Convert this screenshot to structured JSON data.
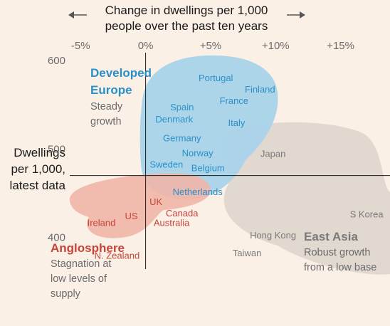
{
  "chart_data": {
    "type": "scatter",
    "x_title": [
      "Change in dwellings per 1,000",
      "people over the past ten years"
    ],
    "y_title": [
      "Dwellings",
      "per 1,000,",
      "latest data"
    ],
    "x_ticks": [
      {
        "value": -5,
        "label": "-5%"
      },
      {
        "value": 0,
        "label": "0%"
      },
      {
        "value": 5,
        "label": "+5%"
      },
      {
        "value": 10,
        "label": "+10%"
      },
      {
        "value": 15,
        "label": "+15%"
      }
    ],
    "y_ticks": [
      {
        "value": 600,
        "label": "600"
      },
      {
        "value": 500,
        "label": "500"
      },
      {
        "value": 400,
        "label": "400"
      }
    ],
    "xlim": [
      -11.2,
      18.8
    ],
    "ylim": [
      300,
      620
    ],
    "reference_lines": {
      "x": 0,
      "y": 470
    },
    "groups": [
      {
        "name": "Developed Europe",
        "title": [
          "Developed",
          "Europe"
        ],
        "subtitle": [
          "Steady",
          "growth"
        ],
        "color": "#2a8fc9",
        "fill": "#a9d3ea",
        "points": [
          {
            "label": "Portugal",
            "x": 5.4,
            "y": 580
          },
          {
            "label": "Finland",
            "x": 8.8,
            "y": 567
          },
          {
            "label": "France",
            "x": 6.8,
            "y": 554
          },
          {
            "label": "Spain",
            "x": 2.8,
            "y": 547
          },
          {
            "label": "Denmark",
            "x": 2.2,
            "y": 533
          },
          {
            "label": "Italy",
            "x": 7.0,
            "y": 529
          },
          {
            "label": "Germany",
            "x": 2.8,
            "y": 512
          },
          {
            "label": "Norway",
            "x": 4.0,
            "y": 495
          },
          {
            "label": "Sweden",
            "x": 1.6,
            "y": 482
          },
          {
            "label": "Belgium",
            "x": 4.8,
            "y": 478
          },
          {
            "label": "Netherlands",
            "x": 4.0,
            "y": 451
          }
        ]
      },
      {
        "name": "Anglosphere",
        "title": [
          "Anglosphere"
        ],
        "subtitle": [
          "Stagnation at",
          "low levels of",
          "supply"
        ],
        "color": "#c7443b",
        "fill": "#f0b5a7",
        "points": [
          {
            "label": "UK",
            "x": 0.8,
            "y": 440
          },
          {
            "label": "US",
            "x": -1.1,
            "y": 424
          },
          {
            "label": "Canada",
            "x": 2.8,
            "y": 427
          },
          {
            "label": "Ireland",
            "x": -3.4,
            "y": 416
          },
          {
            "label": "Australia",
            "x": 2.0,
            "y": 416
          },
          {
            "label": "N. Zealand",
            "x": -2.2,
            "y": 379
          }
        ]
      },
      {
        "name": "East Asia",
        "title": [
          "East Asia"
        ],
        "subtitle": [
          "Robust growth",
          "from a low base"
        ],
        "color": "#7a7a7a",
        "fill": "#dcd3cb",
        "points": [
          {
            "label": "Japan",
            "x": 9.8,
            "y": 494
          },
          {
            "label": "Hong Kong",
            "x": 9.8,
            "y": 402
          },
          {
            "label": "Taiwan",
            "x": 7.8,
            "y": 382
          },
          {
            "label": "S Korea",
            "x": 17.0,
            "y": 426
          }
        ]
      }
    ]
  }
}
